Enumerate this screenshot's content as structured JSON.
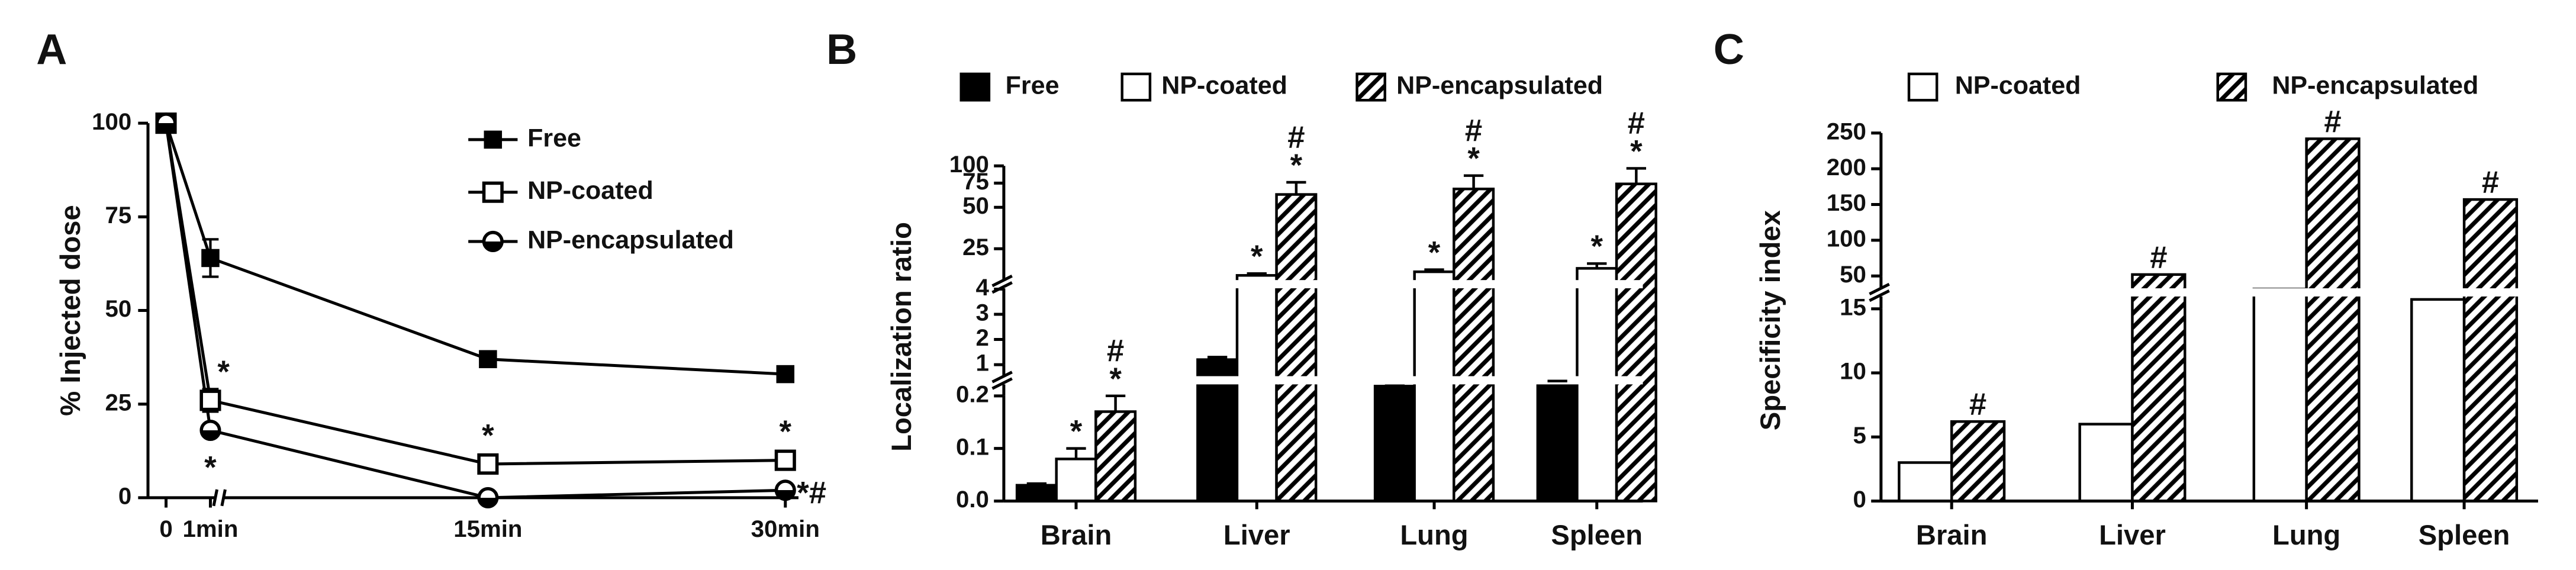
{
  "chart_data": [
    {
      "label": "A",
      "type": "line",
      "ylabel": "% Injected dose",
      "x": [
        0,
        1,
        15,
        30
      ],
      "x_segments": [
        [
          0,
          1
        ],
        [
          1,
          30
        ]
      ],
      "xticks": [
        0,
        {
          "value": 1,
          "label": "1min"
        },
        {
          "value": 15,
          "label": "15min"
        },
        {
          "value": 30,
          "label": "30min"
        }
      ],
      "ylim": [
        0,
        100
      ],
      "yticks": [
        0,
        25,
        50,
        75,
        100
      ],
      "series": [
        {
          "name": "Free",
          "color": "#000000",
          "marker": "filled-square",
          "values": [
            100,
            64,
            37,
            33
          ],
          "errors": [
            0,
            5,
            1.5,
            1.5
          ]
        },
        {
          "name": "NP-coated",
          "color": "#000000",
          "marker": "open-square",
          "values": [
            100,
            26,
            9,
            10
          ],
          "errors": [
            0,
            3,
            1.5,
            1.5
          ],
          "annotations": [
            null,
            "*",
            "*",
            "*"
          ]
        },
        {
          "name": "NP-encapsulated",
          "color": "#000000",
          "marker": "half-circle",
          "values": [
            100,
            18,
            0,
            2
          ],
          "annotations": [
            null,
            "*",
            null,
            "*#"
          ]
        }
      ]
    },
    {
      "label": "B",
      "type": "bar",
      "ylabel": "Localization ratio",
      "categories": [
        "Brain",
        "Liver",
        "Lung",
        "Spleen"
      ],
      "y_segments": [
        {
          "ylim": [
            0,
            0.2
          ],
          "yticks": [
            {
              "value": 0,
              "label": "0.0"
            },
            0.1,
            0.2
          ]
        },
        {
          "ylim": [
            1,
            4
          ],
          "yticks": [
            1,
            2,
            3,
            4
          ]
        },
        {
          "ylim": [
            15,
            100
          ],
          "log": true,
          "yticks": [
            25,
            50,
            75,
            100
          ]
        }
      ],
      "series": [
        {
          "name": "Free",
          "color": "#000000",
          "values": [
            0.03,
            1.2,
            0.45,
            0.55
          ],
          "errors": [
            0.003,
            0.1,
            0.01,
            0.03
          ]
        },
        {
          "name": "NP-coated",
          "color": "#ffffff",
          "values": [
            0.08,
            16,
            17,
            18
          ],
          "errors": [
            0.02,
            0.5,
            0.6,
            1.5
          ],
          "annotations": [
            [
              "*"
            ],
            [
              "*"
            ],
            [
              "*"
            ],
            [
              "*"
            ]
          ]
        },
        {
          "name": "NP-encapsulated",
          "color": "#000000",
          "pattern": "hatch",
          "values": [
            0.17,
            62,
            68,
            74
          ],
          "errors": [
            0.03,
            14,
            17,
            22
          ],
          "annotations": [
            [
              "#",
              "*"
            ],
            [
              "#",
              "*"
            ],
            [
              "#",
              "*"
            ],
            [
              "#",
              "*"
            ]
          ]
        }
      ]
    },
    {
      "label": "C",
      "type": "bar",
      "ylabel": "Specificity index",
      "categories": [
        "Brain",
        "Liver",
        "Lung",
        "Spleen"
      ],
      "y_segments": [
        {
          "ylim": [
            0,
            15
          ],
          "yticks": [
            0,
            5,
            10,
            15
          ]
        },
        {
          "ylim": [
            50,
            250
          ],
          "yticks": [
            50,
            100,
            150,
            200,
            250
          ]
        }
      ],
      "series": [
        {
          "name": "NP-coated",
          "color": "#ffffff",
          "values": [
            3,
            6,
            36,
            25
          ]
        },
        {
          "name": "NP-encapsulated",
          "color": "#000000",
          "pattern": "hatch",
          "values": [
            6.2,
            52,
            242,
            157
          ],
          "annotations": [
            [
              "#"
            ],
            [
              "#"
            ],
            [
              "#"
            ],
            [
              "#"
            ]
          ]
        }
      ]
    }
  ]
}
